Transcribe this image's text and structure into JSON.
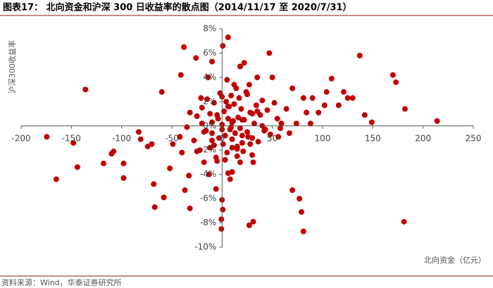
{
  "chart_data": {
    "type": "scatter",
    "title": "图表17：  北向资金和沪深 300 日收益率的散点图（2014/11/17 至 2020/7/31）",
    "source": "资料来源：Wind，华泰证券研究所",
    "x_label": "北向资金（亿元）",
    "y_label": "沪深300收益率",
    "color": "#c00000",
    "xlim": [
      -200,
      250
    ],
    "xticks": [
      -200,
      -150,
      -100,
      -50,
      0,
      50,
      100,
      150,
      200,
      250
    ],
    "ylim": [
      -10,
      8
    ],
    "yticks": [
      {
        "value": -10,
        "label": "-10%"
      },
      {
        "value": -8,
        "label": "-8%"
      },
      {
        "value": -6,
        "label": "-6%"
      },
      {
        "value": -4,
        "label": "-4%"
      },
      {
        "value": -2,
        "label": "-2%"
      },
      {
        "value": 0,
        "label": "0%"
      },
      {
        "value": 2,
        "label": "2%"
      },
      {
        "value": 4,
        "label": "4%"
      },
      {
        "value": 6,
        "label": "6%"
      },
      {
        "value": 8,
        "label": "8%"
      }
    ],
    "x": [
      -174.5,
      -148,
      -165,
      -144,
      -136,
      -118,
      -110,
      -108,
      -98,
      -98,
      -83,
      -81,
      -74,
      -70,
      -68,
      -67,
      -60,
      -58,
      -52,
      -40,
      -38,
      -37,
      -33,
      -41,
      -32,
      -26,
      0.7,
      6,
      -10,
      -13,
      -6,
      0,
      0.7,
      -0.7,
      -0.7,
      6,
      10,
      8,
      27,
      31,
      47,
      70,
      77,
      79,
      81,
      181,
      137,
      170,
      173,
      182,
      214,
      149,
      142,
      125,
      121,
      109,
      104,
      102,
      96,
      90,
      81,
      70,
      64,
      74,
      59,
      50,
      43,
      27,
      18,
      22,
      35,
      -14,
      -21,
      -32,
      -35,
      -42,
      -49,
      -25,
      -18,
      -10,
      10,
      21,
      28,
      31,
      18,
      116,
      130,
      84,
      88,
      67,
      56,
      -28,
      -25,
      -22,
      -20,
      -18,
      -15,
      -12,
      -10,
      -8,
      -6,
      -5,
      -3,
      -2,
      0,
      1,
      2,
      3,
      4,
      5,
      6,
      7,
      8,
      9,
      10,
      11,
      12,
      13,
      14,
      15,
      16,
      17,
      18,
      19,
      20,
      22,
      24,
      26,
      28,
      30,
      32,
      34,
      36,
      38,
      40,
      42,
      45,
      48,
      52,
      55,
      58,
      -16,
      -12,
      -8,
      -4,
      0,
      3,
      6,
      9,
      12,
      15,
      20,
      25,
      30,
      35,
      40,
      -20,
      -10,
      0,
      10,
      20,
      30,
      5,
      15,
      25,
      -5
    ],
    "values": [
      -0.9,
      -1.4,
      -4.4,
      -3.4,
      3.0,
      -3.1,
      -2.3,
      -2.1,
      -3.1,
      -4.3,
      -0.5,
      -1.1,
      -1.7,
      -1.5,
      -4.8,
      -6.7,
      2.8,
      -5.9,
      -3.5,
      -2.2,
      6.5,
      -5.3,
      -4.1,
      4.2,
      -6.8,
      5.6,
      6.6,
      7.3,
      5.3,
      -4.0,
      -5.2,
      -6.1,
      -6.9,
      -7.7,
      -8.5,
      -3.9,
      -3.8,
      -4.4,
      -8.2,
      -7.9,
      6.0,
      -5.3,
      -6.0,
      -7.1,
      -8.7,
      -7.9,
      5.8,
      4.2,
      3.6,
      1.4,
      0.4,
      0.3,
      0.9,
      2.3,
      2.8,
      3.9,
      2.8,
      1.7,
      1.1,
      2.3,
      2.3,
      3.1,
      1.4,
      0.2,
      0.2,
      4.0,
      -0.3,
      3.4,
      4.9,
      5.2,
      4.0,
      4.0,
      2.3,
      1.1,
      -0.1,
      -0.9,
      -1.5,
      -2.1,
      -3.0,
      -1.2,
      -1.8,
      -2.1,
      -1.5,
      -3.0,
      -3.0,
      1.7,
      2.3,
      1.1,
      0.2,
      -0.6,
      -0.9,
      -1.2,
      0.8,
      -2.0,
      1.5,
      -0.5,
      2.2,
      -1.8,
      0.3,
      1.9,
      -2.6,
      0.9,
      -1.0,
      2.7,
      0.1,
      -1.5,
      1.2,
      -0.8,
      2.0,
      -2.2,
      0.6,
      1.6,
      -0.3,
      2.5,
      -1.1,
      0.4,
      1.8,
      -0.6,
      3.1,
      -1.9,
      0.7,
      2.3,
      -0.2,
      1.4,
      -1.4,
      0.5,
      2.8,
      -0.9,
      1.1,
      -2.4,
      0.2,
      1.7,
      -1.3,
      0.9,
      2.1,
      -0.4,
      1.3,
      -0.7,
      1.9,
      0.6,
      -0.2,
      -0.4,
      1.0,
      -1.6,
      0.6,
      2.4,
      -2.8,
      1.6,
      -0.1,
      3.4,
      -1.7,
      0.5,
      2.6,
      -1.0,
      1.2,
      0.0,
      0.2,
      -0.6,
      -0.3,
      0.3,
      -0.8,
      1.0,
      3.8,
      -2.5,
      -0.5,
      -2.9
    ]
  }
}
